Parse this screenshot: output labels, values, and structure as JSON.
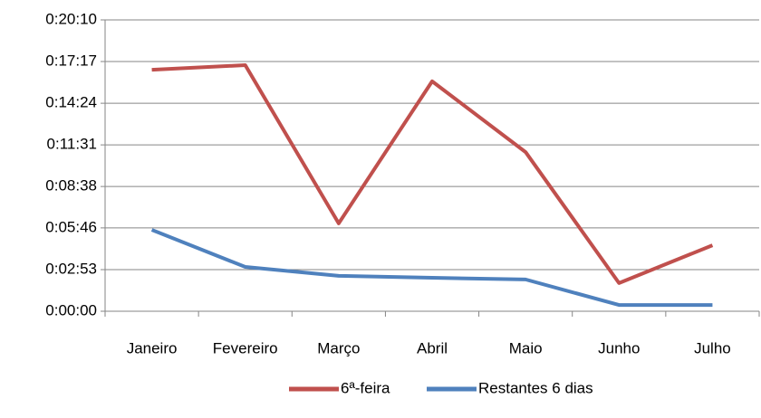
{
  "chart_data": {
    "type": "line",
    "categories": [
      "Janeiro",
      "Fevereiro",
      "Março",
      "Abril",
      "Maio",
      "Junho",
      "Julho"
    ],
    "series": [
      {
        "name": "6ª-feira",
        "color": "#c0504d",
        "values": [
          1003,
          1022,
          365,
          955,
          661,
          117,
          274
        ]
      },
      {
        "name": "Restantes 6 dias",
        "color": "#4f81bd",
        "values": [
          338,
          184,
          147,
          139,
          132,
          26,
          26
        ]
      }
    ],
    "ylim": [
      0,
      1210
    ],
    "yticks": [
      {
        "value": 0,
        "label": "0:00:00"
      },
      {
        "value": 173,
        "label": "0:02:53"
      },
      {
        "value": 346,
        "label": "0:05:46"
      },
      {
        "value": 518,
        "label": "0:08:38"
      },
      {
        "value": 691,
        "label": "0:11:31"
      },
      {
        "value": 864,
        "label": "0:14:24"
      },
      {
        "value": 1037,
        "label": "0:17:17"
      },
      {
        "value": 1210,
        "label": "0:20:10"
      }
    ],
    "grid": true,
    "legend": "bottom"
  }
}
